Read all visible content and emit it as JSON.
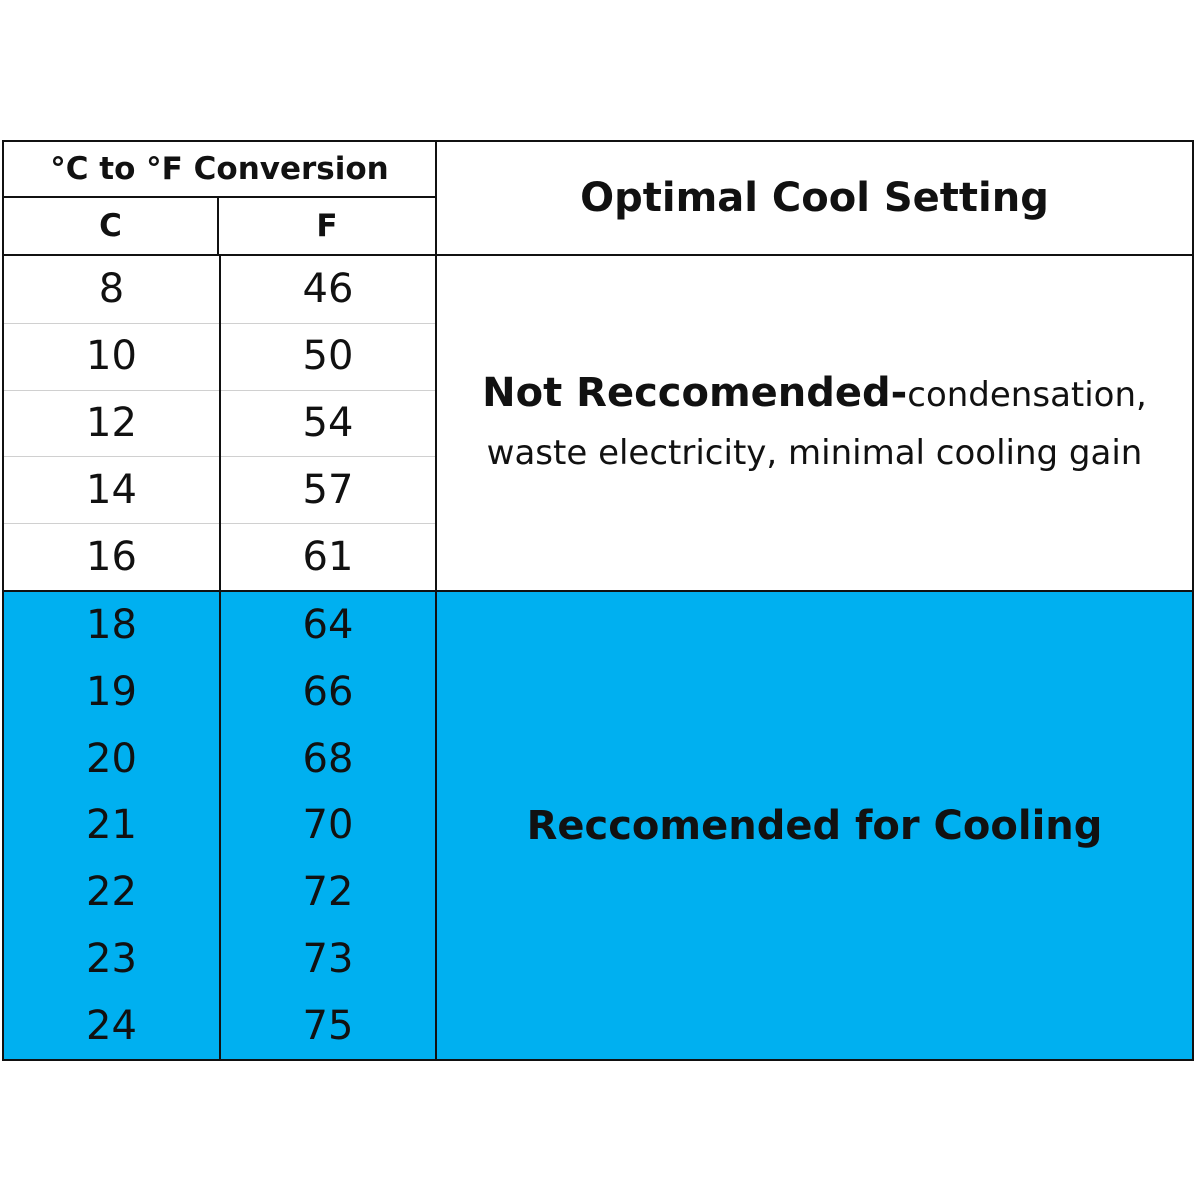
{
  "table": {
    "conversion_header": "°C to °F Conversion",
    "col_c_header": "C",
    "col_f_header": "F",
    "setting_header": "Optimal Cool Setting",
    "not_recommended": {
      "bold": "Not Reccomended-",
      "line1_rest": "condensation,",
      "line2": "waste electricity, minimal cooling gain"
    },
    "recommended": "Reccomended for Cooling",
    "recommended_color": "#00b0f0",
    "rows": [
      {
        "c": "8",
        "f": "46"
      },
      {
        "c": "10",
        "f": "50"
      },
      {
        "c": "12",
        "f": "54"
      },
      {
        "c": "14",
        "f": "57"
      },
      {
        "c": "16",
        "f": "61"
      },
      {
        "c": "18",
        "f": "64"
      },
      {
        "c": "19",
        "f": "66"
      },
      {
        "c": "20",
        "f": "68"
      },
      {
        "c": "21",
        "f": "70"
      },
      {
        "c": "22",
        "f": "72"
      },
      {
        "c": "23",
        "f": "73"
      },
      {
        "c": "24",
        "f": "75"
      }
    ]
  }
}
